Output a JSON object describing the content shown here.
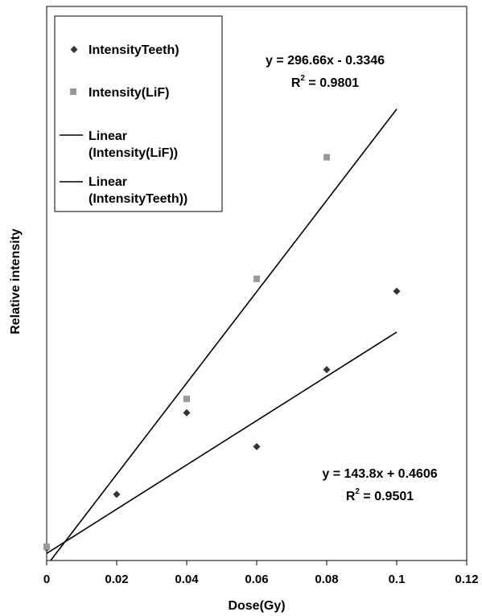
{
  "chart_data": {
    "type": "scatter",
    "title": "",
    "xlabel": "Dose(Gy)",
    "ylabel": "Relative intensity",
    "xlim": [
      0,
      0.12
    ],
    "ylim": [
      0,
      36
    ],
    "x_ticks": [
      "0",
      "0.02",
      "0.04",
      "0.06",
      "0.08",
      "0.1",
      "0.12"
    ],
    "grid": false,
    "legend_position": "top-left",
    "series": [
      {
        "name": "IntensityTeeth)",
        "marker": "diamond",
        "color": "#333333",
        "x": [
          0,
          0.02,
          0.04,
          0.06,
          0.08,
          0.1
        ],
        "y": [
          0.8,
          4.3,
          9.6,
          7.4,
          12.4,
          17.5
        ]
      },
      {
        "name": "Intensity(LiF)",
        "marker": "square",
        "color": "#999999",
        "x": [
          0,
          0.04,
          0.06,
          0.08
        ],
        "y": [
          0.9,
          10.5,
          18.3,
          26.2
        ]
      }
    ],
    "trendlines": [
      {
        "name": "Linear\n(Intensity(LiF))",
        "legend_lines": [
          "Linear",
          "(Intensity(LiF))"
        ],
        "slope": 296.66,
        "intercept": -0.3346,
        "x_range": [
          0.001,
          0.1
        ],
        "equation": "y = 296.66x - 0.3346",
        "r2_prefix": "R",
        "r2_sup": "2",
        "r2_value": " = 0.9801",
        "color": "#000000"
      },
      {
        "name": "Linear\n(IntensityTeeth))",
        "legend_lines": [
          "Linear",
          "(IntensityTeeth))"
        ],
        "slope": 143.8,
        "intercept": 0.4606,
        "x_range": [
          0,
          0.1
        ],
        "equation": "y = 143.8x + 0.4606",
        "r2_prefix": "R",
        "r2_sup": "2",
        "r2_value": " = 0.9501",
        "color": "#000000"
      }
    ]
  }
}
